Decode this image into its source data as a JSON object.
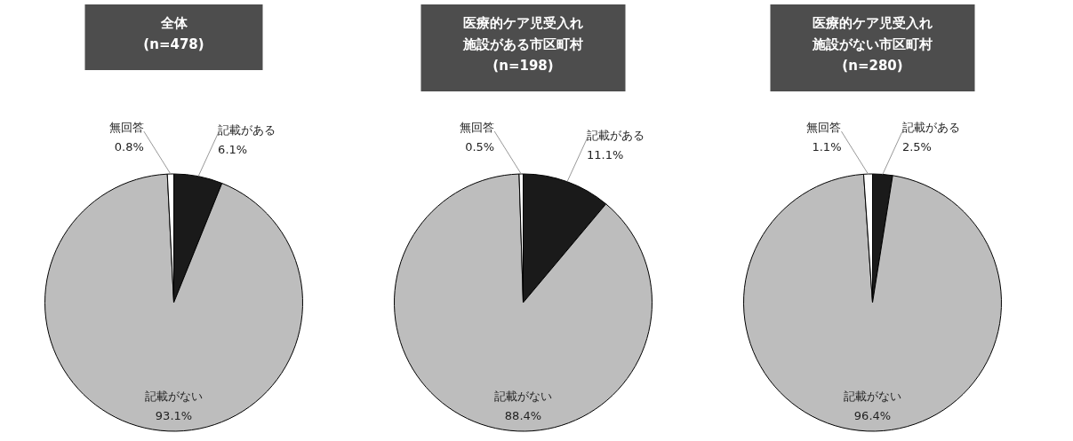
{
  "chart_data": [
    {
      "type": "pie",
      "title": "全体\n(n=478)",
      "categories": [
        "記載がある",
        "記載がない",
        "無回答"
      ],
      "values": [
        6.1,
        93.1,
        0.8
      ],
      "colors": [
        "#1a1a1a",
        "#bdbdbd",
        "#ffffff"
      ],
      "value_labels": [
        "6.1%",
        "93.1%",
        "0.8%"
      ]
    },
    {
      "type": "pie",
      "title": "医療的ケア児受入れ施設がある市区町村\n(n=198)",
      "categories": [
        "記載がある",
        "記載がない",
        "無回答"
      ],
      "values": [
        11.1,
        88.4,
        0.5
      ],
      "colors": [
        "#1a1a1a",
        "#bdbdbd",
        "#ffffff"
      ],
      "value_labels": [
        "11.1%",
        "88.4%",
        "0.5%"
      ]
    },
    {
      "type": "pie",
      "title": "医療的ケア児受入れ施設がない市区町村\n(n=280)",
      "categories": [
        "記載がある",
        "記載がない",
        "無回答"
      ],
      "values": [
        2.5,
        96.4,
        1.1
      ],
      "colors": [
        "#1a1a1a",
        "#bdbdbd",
        "#ffffff"
      ],
      "value_labels": [
        "2.5%",
        "96.4%",
        "1.1%"
      ]
    }
  ]
}
